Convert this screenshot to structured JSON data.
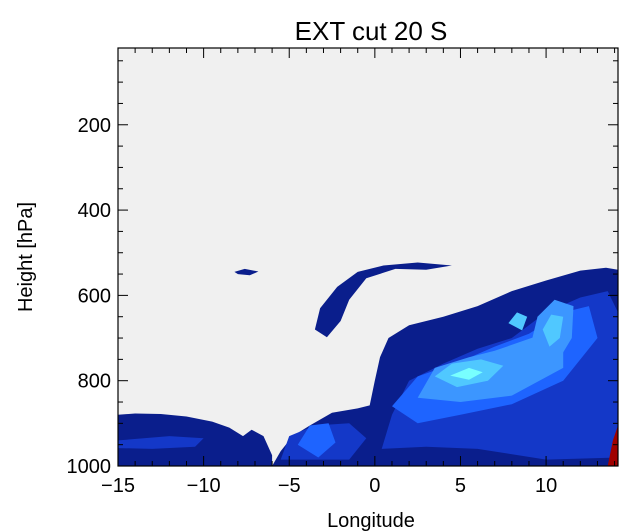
{
  "chart_data": {
    "type": "heatmap",
    "title": "EXT cut  20 S",
    "xlabel": "Longitude",
    "ylabel": "Height [hPa]",
    "xlim": [
      -15,
      14.2
    ],
    "ylim": [
      1000,
      20
    ],
    "x_ticks": [
      -15,
      -10,
      -5,
      0,
      5,
      10
    ],
    "x_tick_labels": [
      "−15",
      "−10",
      "−5",
      "0",
      "5",
      "10"
    ],
    "y_ticks": [
      200,
      400,
      600,
      800,
      1000
    ],
    "y_tick_labels": [
      "200",
      "400",
      "600",
      "800",
      "1000"
    ],
    "background_color": "#f0f0f0",
    "colormap": [
      "#0a1e8c",
      "#1438c8",
      "#1e64ff",
      "#3c96ff",
      "#50c8ff",
      "#78ffff",
      "#a00000"
    ],
    "regions": [
      {
        "level": 0,
        "points": [
          [
            -15,
            880
          ],
          [
            -14,
            877
          ],
          [
            -12.5,
            878
          ],
          [
            -11,
            884
          ],
          [
            -9.5,
            896
          ],
          [
            -8.5,
            910
          ],
          [
            -7.7,
            930
          ],
          [
            -7.2,
            915
          ],
          [
            -6.5,
            930
          ],
          [
            -6,
            975
          ],
          [
            -6,
            1000
          ],
          [
            -15,
            1000
          ]
        ]
      },
      {
        "level": 0,
        "points": [
          [
            -6,
            1000
          ],
          [
            -5.5,
            965
          ],
          [
            -4.8,
            930
          ],
          [
            -3.8,
            905
          ],
          [
            -2.5,
            875
          ],
          [
            -1,
            865
          ],
          [
            -0.3,
            858
          ],
          [
            0,
            800
          ],
          [
            0.3,
            745
          ],
          [
            0.8,
            700
          ],
          [
            2,
            670
          ],
          [
            4,
            650
          ],
          [
            6,
            625
          ],
          [
            8,
            590
          ],
          [
            10,
            565
          ],
          [
            12,
            542
          ],
          [
            13.5,
            535
          ],
          [
            14.2,
            540
          ],
          [
            14.2,
            1000
          ]
        ]
      },
      {
        "level": 0,
        "points": [
          [
            -2.8,
            698
          ],
          [
            -3.5,
            680
          ],
          [
            -3.2,
            630
          ],
          [
            -2.2,
            580
          ],
          [
            -1,
            545
          ],
          [
            0.5,
            530
          ],
          [
            2.5,
            523
          ],
          [
            4.5,
            530
          ],
          [
            3,
            540
          ],
          [
            1.2,
            538
          ],
          [
            -0.5,
            560
          ],
          [
            -1.5,
            610
          ],
          [
            -2,
            660
          ]
        ]
      },
      {
        "level": 0,
        "points": [
          [
            -8.2,
            545
          ],
          [
            -7.6,
            538
          ],
          [
            -6.8,
            544
          ],
          [
            -7.3,
            553
          ],
          [
            -8,
            550
          ]
        ]
      },
      {
        "level": 1,
        "points": [
          [
            0.4,
            960
          ],
          [
            1,
            880
          ],
          [
            2,
            800
          ],
          [
            4,
            760
          ],
          [
            6,
            725
          ],
          [
            8,
            700
          ],
          [
            10,
            640
          ],
          [
            12,
            605
          ],
          [
            13.6,
            590
          ],
          [
            14.2,
            640
          ],
          [
            14.2,
            980
          ],
          [
            10,
            985
          ],
          [
            6,
            960
          ],
          [
            3,
            955
          ]
        ]
      },
      {
        "level": 1,
        "points": [
          [
            -15,
            940
          ],
          [
            -12,
            930
          ],
          [
            -10,
            935
          ],
          [
            -10.5,
            955
          ],
          [
            -13,
            960
          ],
          [
            -15,
            958
          ]
        ]
      },
      {
        "level": 1,
        "points": [
          [
            -5.5,
            985
          ],
          [
            -5,
            930
          ],
          [
            -3.5,
            905
          ],
          [
            -1.5,
            900
          ],
          [
            -0.5,
            935
          ],
          [
            -1.5,
            985
          ]
        ]
      },
      {
        "level": 2,
        "points": [
          [
            1,
            860
          ],
          [
            2.5,
            790
          ],
          [
            5,
            755
          ],
          [
            7,
            720
          ],
          [
            9,
            690
          ],
          [
            11,
            640
          ],
          [
            12.5,
            625
          ],
          [
            13,
            700
          ],
          [
            11,
            800
          ],
          [
            8,
            855
          ],
          [
            5,
            880
          ],
          [
            2.5,
            900
          ]
        ]
      },
      {
        "level": 2,
        "points": [
          [
            -4.5,
            950
          ],
          [
            -3.8,
            905
          ],
          [
            -2.7,
            900
          ],
          [
            -2.3,
            945
          ],
          [
            -3.3,
            980
          ]
        ]
      },
      {
        "level": 3,
        "points": [
          [
            2.5,
            840
          ],
          [
            3.5,
            770
          ],
          [
            5.5,
            745
          ],
          [
            7,
            730
          ],
          [
            9.5,
            695
          ],
          [
            11,
            690
          ],
          [
            11,
            770
          ],
          [
            8,
            835
          ],
          [
            5,
            850
          ]
        ]
      },
      {
        "level": 3,
        "points": [
          [
            9.2,
            700
          ],
          [
            9.5,
            650
          ],
          [
            10.5,
            610
          ],
          [
            11.6,
            625
          ],
          [
            11.5,
            700
          ],
          [
            10.6,
            760
          ],
          [
            9.6,
            745
          ]
        ]
      },
      {
        "level": 4,
        "points": [
          [
            3.5,
            790
          ],
          [
            4.5,
            760
          ],
          [
            6.2,
            750
          ],
          [
            7.5,
            765
          ],
          [
            6.6,
            800
          ],
          [
            4.8,
            815
          ]
        ]
      },
      {
        "level": 4,
        "points": [
          [
            9.8,
            680
          ],
          [
            10.3,
            645
          ],
          [
            11,
            650
          ],
          [
            10.8,
            700
          ],
          [
            10.2,
            720
          ]
        ]
      },
      {
        "level": 4,
        "points": [
          [
            7.8,
            665
          ],
          [
            8.3,
            640
          ],
          [
            8.9,
            650
          ],
          [
            8.6,
            682
          ]
        ]
      },
      {
        "level": 5,
        "points": [
          [
            4.4,
            788
          ],
          [
            5.5,
            770
          ],
          [
            6.3,
            780
          ],
          [
            5.5,
            798
          ]
        ]
      },
      {
        "level": 6,
        "points": [
          [
            13.6,
            1000
          ],
          [
            13.9,
            940
          ],
          [
            14.2,
            905
          ],
          [
            14.2,
            1000
          ]
        ]
      }
    ]
  }
}
